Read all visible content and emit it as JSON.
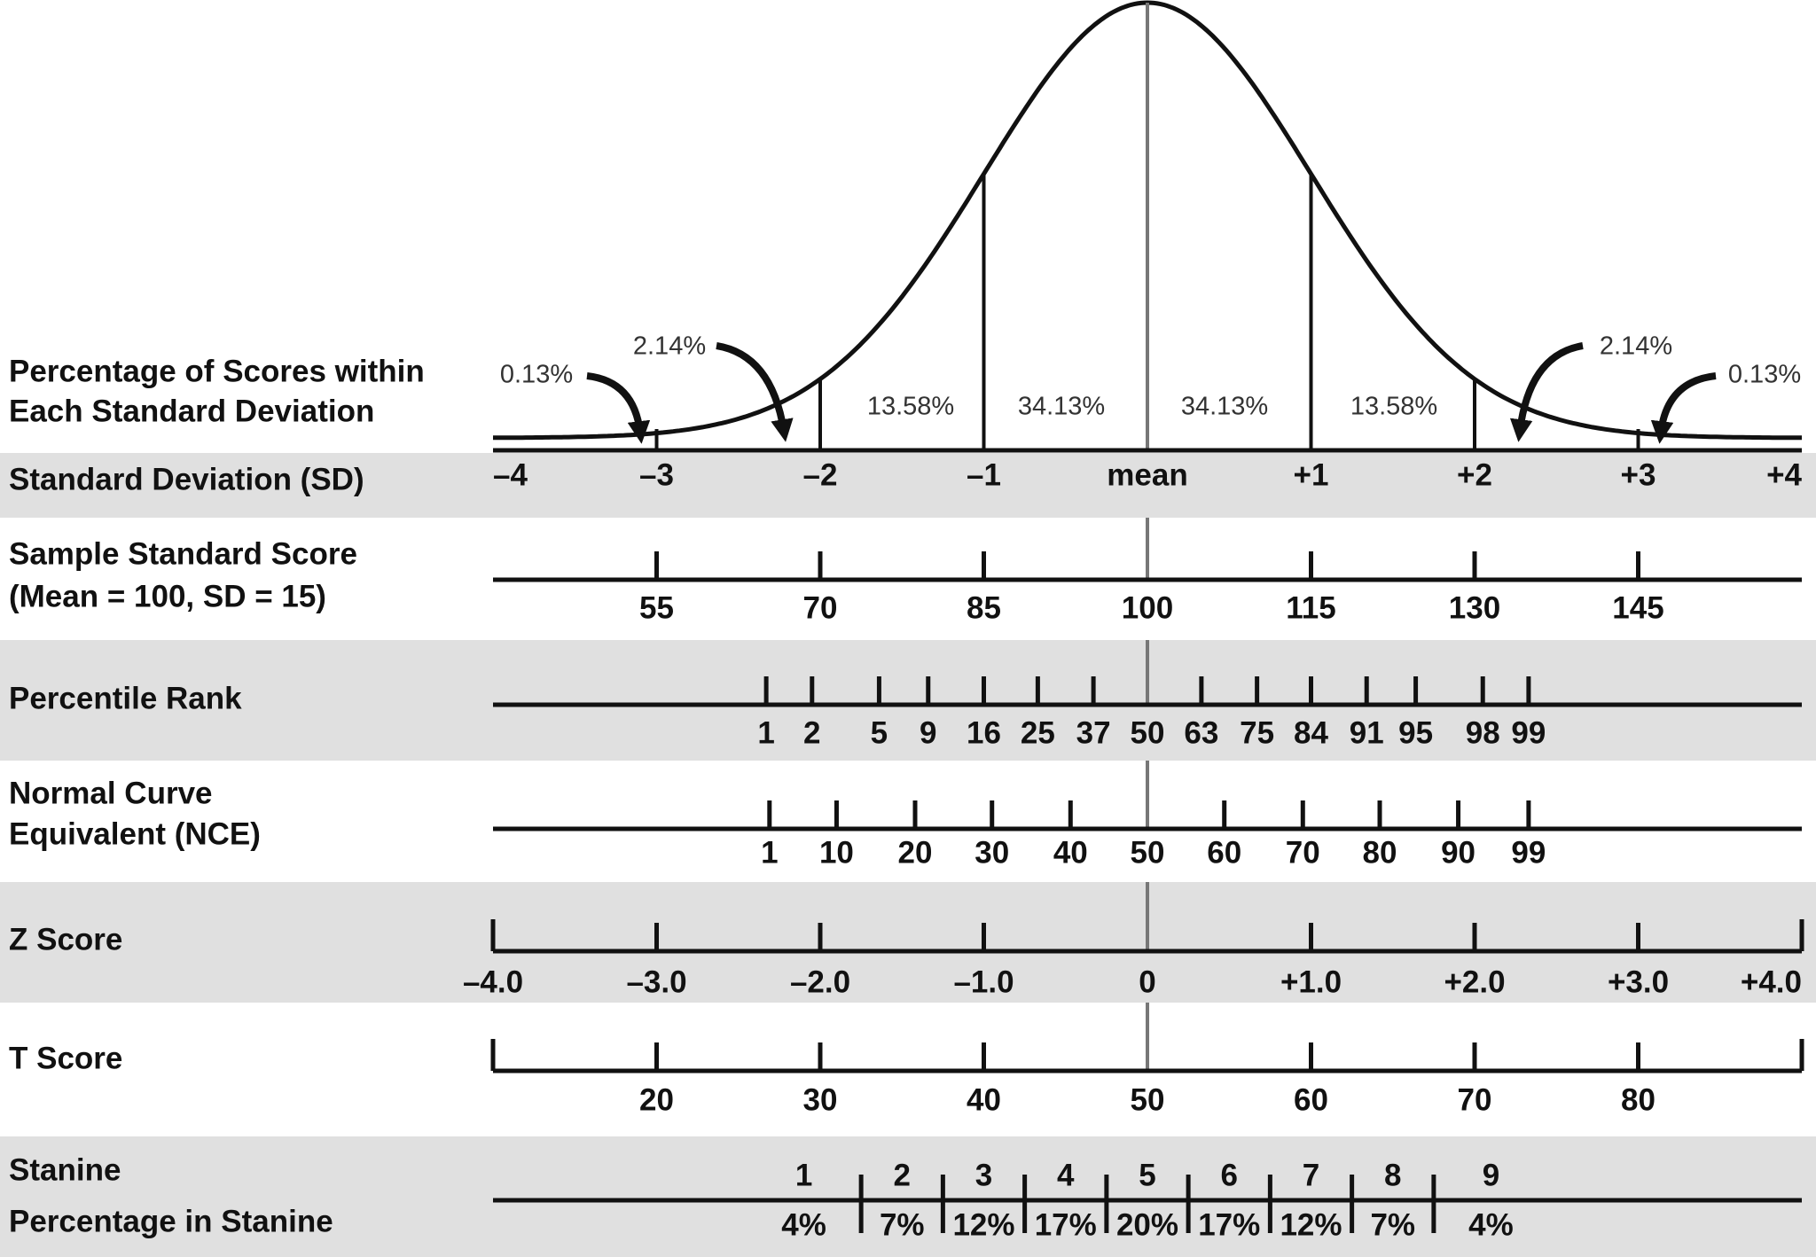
{
  "curve": {
    "label": [
      "Percentage of Scores within",
      "Each Standard Deviation"
    ],
    "percentages": [
      "0.13%",
      "2.14%",
      "13.58%",
      "34.13%",
      "34.13%",
      "13.58%",
      "2.14%",
      "0.13%"
    ]
  },
  "rows": [
    {
      "label": [
        "Standard Deviation (SD)"
      ],
      "ticks": [
        "–4",
        "–3",
        "–2",
        "–1",
        "mean",
        "+1",
        "+2",
        "+3",
        "+4"
      ]
    },
    {
      "label": [
        "Sample Standard Score",
        "(Mean = 100, SD = 15)"
      ],
      "ticks": [
        55,
        70,
        85,
        100,
        115,
        130,
        145
      ]
    },
    {
      "label": [
        "Percentile Rank"
      ],
      "ticks": [
        1,
        2,
        5,
        9,
        16,
        25,
        37,
        50,
        63,
        75,
        84,
        91,
        95,
        98,
        99
      ]
    },
    {
      "label": [
        "Normal Curve",
        "Equivalent (NCE)"
      ],
      "ticks": [
        1,
        10,
        20,
        30,
        40,
        50,
        60,
        70,
        80,
        90,
        99
      ]
    },
    {
      "label": [
        "Z Score"
      ],
      "ticks": [
        "–4.0",
        "–3.0",
        "–2.0",
        "–1.0",
        "0",
        "+1.0",
        "+2.0",
        "+3.0",
        "+4.0"
      ]
    },
    {
      "label": [
        "T Score"
      ],
      "ticks": [
        20,
        30,
        40,
        50,
        60,
        70,
        80
      ]
    },
    {
      "label": [
        "Stanine",
        "Percentage in Stanine"
      ],
      "stanines": [
        1,
        2,
        3,
        4,
        5,
        6,
        7,
        8,
        9
      ],
      "percentages": [
        "4%",
        "7%",
        "12%",
        "17%",
        "20%",
        "17%",
        "12%",
        "7%",
        "4%"
      ]
    }
  ]
}
